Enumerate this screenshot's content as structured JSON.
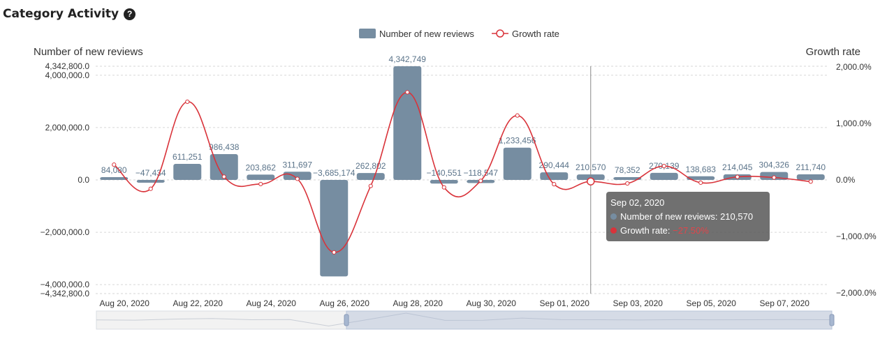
{
  "page": {
    "title": "Category Activity",
    "help_icon": "question-circle-icon"
  },
  "chart_data": {
    "type": "bar",
    "x": [
      "Aug 20, 2020",
      "Aug 21, 2020",
      "Aug 22, 2020",
      "Aug 23, 2020",
      "Aug 24, 2020",
      "Aug 25, 2020",
      "Aug 26, 2020",
      "Aug 27, 2020",
      "Aug 28, 2020",
      "Aug 29, 2020",
      "Aug 30, 2020",
      "Aug 31, 2020",
      "Sep 01, 2020",
      "Sep 02, 2020",
      "Sep 03, 2020",
      "Sep 04, 2020",
      "Sep 05, 2020",
      "Sep 06, 2020",
      "Sep 07, 2020",
      "Sep 08, 2020"
    ],
    "x_tick_labels": [
      "Aug 20, 2020",
      "Aug 22, 2020",
      "Aug 24, 2020",
      "Aug 26, 2020",
      "Aug 28, 2020",
      "Aug 30, 2020",
      "Sep 01, 2020",
      "Sep 03, 2020",
      "Sep 05, 2020",
      "Sep 07, 2020"
    ],
    "series": [
      {
        "name": "Number of new reviews",
        "type": "bar",
        "color": "#768da1",
        "axis": "left",
        "values": [
          84080,
          -47434,
          611251,
          986438,
          203862,
          311697,
          -3685174,
          262802,
          4342749,
          -140551,
          -118547,
          1233456,
          290444,
          210570,
          78352,
          270139,
          138683,
          214045,
          304326,
          211740
        ],
        "labels": [
          "84,080",
          "−47,434",
          "611,251",
          "986,438",
          "203,862",
          "311,697",
          "−3,685,174",
          "262,802",
          "4,342,749",
          "−140,551",
          "−118,547",
          "1,233,456",
          "290,444",
          "210,570",
          "78,352",
          "270,139",
          "138,683",
          "214,045",
          "304,326",
          "211,740"
        ]
      },
      {
        "name": "Growth rate",
        "type": "line",
        "color": "#d9333a",
        "axis": "right",
        "values": [
          270,
          -157,
          1384,
          57,
          -73,
          19,
          -1282,
          -107,
          1552,
          -132,
          -16,
          1140,
          -76,
          -27.5,
          -63,
          245,
          -49,
          54,
          42,
          -30
        ]
      }
    ],
    "y_left": {
      "label": "Number of new reviews",
      "min": -4342800,
      "max": 4342800,
      "ticks": [
        4000000,
        2000000,
        0,
        -2000000,
        -4000000
      ],
      "tick_labels": [
        "4,000,000.0",
        "2,000,000.0",
        "0.0",
        "−2,000,000.0",
        "−4,000,000.0"
      ],
      "extent_labels": [
        "4,342,800.0",
        "−4,342,800.0"
      ]
    },
    "y_right": {
      "label": "Growth rate",
      "min": -2000,
      "max": 2000,
      "ticks": [
        2000,
        1000,
        0,
        -1000,
        -2000
      ],
      "tick_labels": [
        "2,000.0%",
        "1,000.0%",
        "0.0%",
        "−1,000.0%",
        "−2,000.0%"
      ]
    },
    "legend": {
      "position": "top-center",
      "items": [
        {
          "name": "Number of new reviews",
          "symbol": "bar"
        },
        {
          "name": "Growth rate",
          "symbol": "line-circle"
        }
      ]
    },
    "grid": "horizontal-dashed",
    "hover_index": 13,
    "data_zoom": {
      "start_fraction": 0.34,
      "end_fraction": 1.0
    }
  },
  "tooltip": {
    "title": "Sep 02, 2020",
    "row1_label": "Number of new reviews: ",
    "row1_value": "210,570",
    "row2_label": "Growth rate: ",
    "row2_value": "−27.50%"
  }
}
